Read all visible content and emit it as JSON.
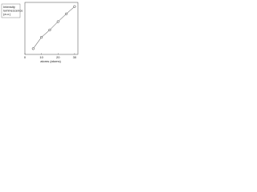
{
  "chart_data": {
    "type": "scatter",
    "y_label_lines": [
      "Intensity",
      "luminescence",
      "(a.u.)"
    ],
    "x_label": "atoms (atoms)",
    "x": [
      5,
      10,
      15,
      20,
      25,
      30
    ],
    "series": [
      {
        "name": "luminescence",
        "color": "#333333",
        "values": [
          1.1,
          3.3,
          4.7,
          6.3,
          7.8,
          9.2
        ]
      }
    ],
    "xlim": [
      0,
      32
    ],
    "ylim": [
      0,
      10
    ],
    "xticks": [
      0,
      10,
      20,
      30
    ]
  }
}
